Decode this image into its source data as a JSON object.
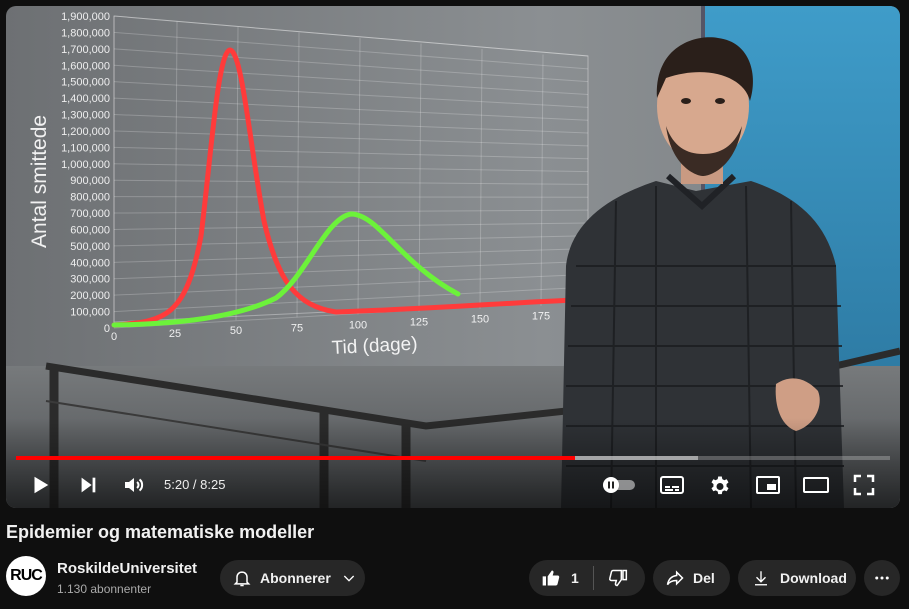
{
  "video": {
    "chart": {
      "y_axis_label": "Antal smittede",
      "x_axis_label": "Tid (dage)",
      "y_ticks": [
        "0",
        "100,000",
        "200,000",
        "300,000",
        "400,000",
        "500,000",
        "600,000",
        "700,000",
        "800,000",
        "900,000",
        "1,000,000",
        "1,100,000",
        "1,200,000",
        "1,300,000",
        "1,400,000",
        "1,500,000",
        "1,600,000",
        "1,700,000",
        "1,800,000",
        "1,900,000"
      ],
      "x_ticks": [
        "0",
        "25",
        "50",
        "75",
        "100",
        "125",
        "150",
        "175"
      ],
      "colors": {
        "curve_fast": "#ff3b3b",
        "curve_slow": "#6cf23a"
      }
    }
  },
  "player": {
    "time_display": "5:20 / 8:25",
    "played_fraction": 0.64,
    "buffered_fraction": 0.78,
    "colors": {
      "progress": "#ff0000"
    }
  },
  "video_title": "Epidemier og matematiske modeller",
  "channel": {
    "avatar_text": "RUC",
    "name": "RoskildeUniversitet",
    "subscribers": "1.130 abonnenter"
  },
  "actions": {
    "subscribe_label": "Abonnerer",
    "like_count": "1",
    "share_label": "Del",
    "download_label": "Download"
  }
}
